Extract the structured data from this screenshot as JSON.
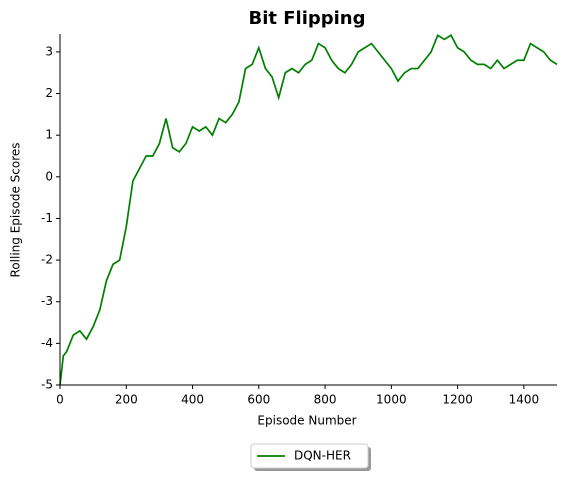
{
  "chart_data": {
    "type": "line",
    "title": "Bit Flipping",
    "xlabel": "Episode Number",
    "ylabel": "Rolling Episode Scores",
    "x": [
      0,
      10,
      20,
      40,
      60,
      80,
      100,
      120,
      140,
      160,
      180,
      200,
      220,
      240,
      260,
      280,
      300,
      320,
      340,
      360,
      380,
      400,
      420,
      440,
      460,
      480,
      500,
      520,
      540,
      560,
      580,
      600,
      620,
      640,
      660,
      680,
      700,
      720,
      740,
      760,
      780,
      800,
      820,
      840,
      860,
      880,
      900,
      920,
      940,
      960,
      980,
      1000,
      1020,
      1040,
      1060,
      1080,
      1100,
      1120,
      1140,
      1160,
      1180,
      1200,
      1220,
      1240,
      1260,
      1280,
      1300,
      1320,
      1340,
      1360,
      1380,
      1400,
      1420,
      1440,
      1460,
      1480,
      1500
    ],
    "series": [
      {
        "name": "DQN-HER",
        "color": "#008000",
        "values": [
          -5,
          -4.3,
          -4.2,
          -3.8,
          -3.7,
          -3.9,
          -3.6,
          -3.2,
          -2.5,
          -2.1,
          -2.0,
          -1.2,
          -0.1,
          0.2,
          0.5,
          0.5,
          0.8,
          1.4,
          0.7,
          0.6,
          0.8,
          1.2,
          1.1,
          1.2,
          1.0,
          1.4,
          1.3,
          1.5,
          1.8,
          2.6,
          2.7,
          3.1,
          2.6,
          2.4,
          1.9,
          2.5,
          2.6,
          2.5,
          2.7,
          2.8,
          3.2,
          3.1,
          2.8,
          2.6,
          2.5,
          2.7,
          3.0,
          3.1,
          3.2,
          3.0,
          2.8,
          2.6,
          2.3,
          2.5,
          2.6,
          2.6,
          2.8,
          3.0,
          3.4,
          3.3,
          3.4,
          3.1,
          3.0,
          2.8,
          2.7,
          2.7,
          2.6,
          2.8,
          2.6,
          2.7,
          2.8,
          2.8,
          3.2,
          3.1,
          3.0,
          2.8,
          2.7
        ]
      }
    ],
    "xlim": [
      0,
      1500
    ],
    "xticks": [
      0,
      200,
      400,
      600,
      800,
      1000,
      1200,
      1400
    ],
    "ylim": [
      -5,
      3.43
    ],
    "yticks": [
      -5,
      -4,
      -3,
      -2,
      -1,
      0,
      1,
      2,
      3
    ],
    "grid": false,
    "legend": "bottom"
  }
}
